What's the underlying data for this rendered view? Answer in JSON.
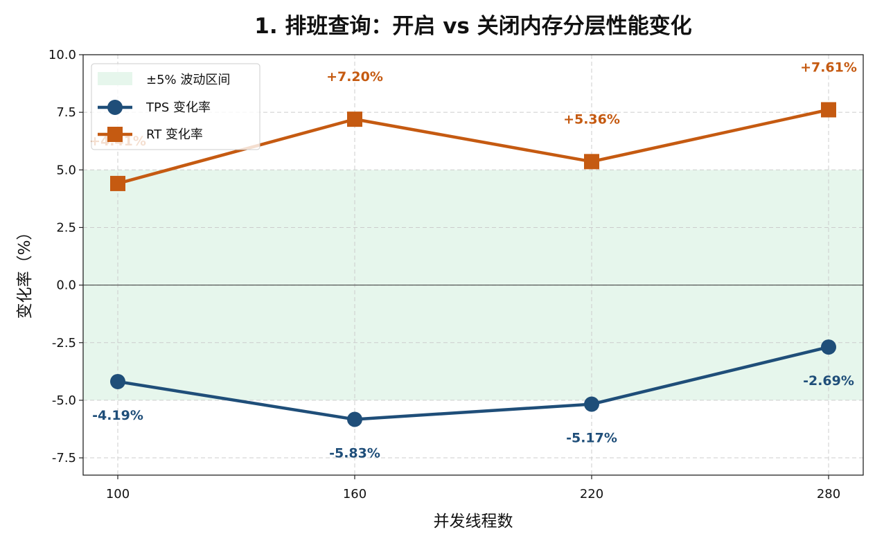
{
  "chart_data": {
    "type": "line",
    "title": "1. 排班查询：开启 vs 关闭内存分层性能变化",
    "xlabel": "并发线程数",
    "ylabel": "变化率（%）",
    "categories": [
      "100",
      "160",
      "220",
      "280"
    ],
    "x": [
      100,
      160,
      220,
      280
    ],
    "ylim": [
      -8.25,
      10.0
    ],
    "yticks": [
      "10.0",
      "7.5",
      "5.0",
      "2.5",
      "0.0",
      "-2.5",
      "-5.0",
      "-7.5"
    ],
    "ytick_values": [
      10.0,
      7.5,
      5.0,
      2.5,
      0.0,
      -2.5,
      -5.0,
      -7.5
    ],
    "grid": true,
    "legend_position": "top-left",
    "band": {
      "name": "±5% 波动区间",
      "low": -5,
      "high": 5,
      "color": "#e6f6ec"
    },
    "series": [
      {
        "name": "TPS 变化率",
        "marker": "circle",
        "color": "#1f4e79",
        "values": [
          -4.19,
          -5.83,
          -5.17,
          -2.69
        ],
        "labels": [
          "-4.19%",
          "-5.83%",
          "-5.17%",
          "-2.69%"
        ]
      },
      {
        "name": "RT 变化率",
        "marker": "square",
        "color": "#c55a11",
        "values": [
          4.41,
          7.2,
          5.36,
          7.61
        ],
        "labels": [
          "+4.41%",
          "+7.20%",
          "+5.36%",
          "+7.61%"
        ]
      }
    ]
  }
}
